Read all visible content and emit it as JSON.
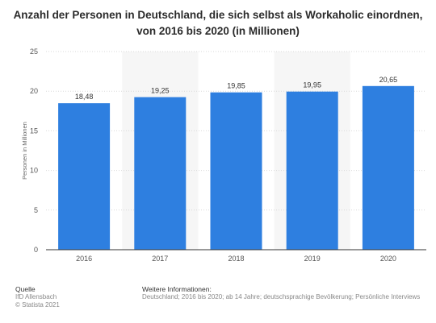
{
  "chart_data": {
    "type": "bar",
    "title": "Anzahl der Personen in Deutschland, die sich selbst als Workaholic einordnen, von 2016 bis 2020 (in Millionen)",
    "categories": [
      "2016",
      "2017",
      "2018",
      "2019",
      "2020"
    ],
    "values": [
      18.48,
      19.25,
      19.85,
      19.95,
      20.65
    ],
    "value_labels": [
      "18,48",
      "19,25",
      "19,85",
      "19,95",
      "20,65"
    ],
    "xlabel": "",
    "ylabel": "Personen in Millionen",
    "ylim": [
      0,
      25
    ],
    "yticks": [
      "0",
      "5",
      "10",
      "15",
      "20",
      "25"
    ],
    "grid": true,
    "bar_color": "#2e7fe0",
    "band_color": "#f6f6f6"
  },
  "footer": {
    "source_heading": "Quelle",
    "source_lines": [
      "IfD Allensbach",
      "© Statista 2021"
    ],
    "info_heading": "Weitere Informationen:",
    "info_text": "Deutschland; 2016 bis 2020; ab 14 Jahre; deutschsprachige Bevölkerung; Persönliche Interviews"
  }
}
